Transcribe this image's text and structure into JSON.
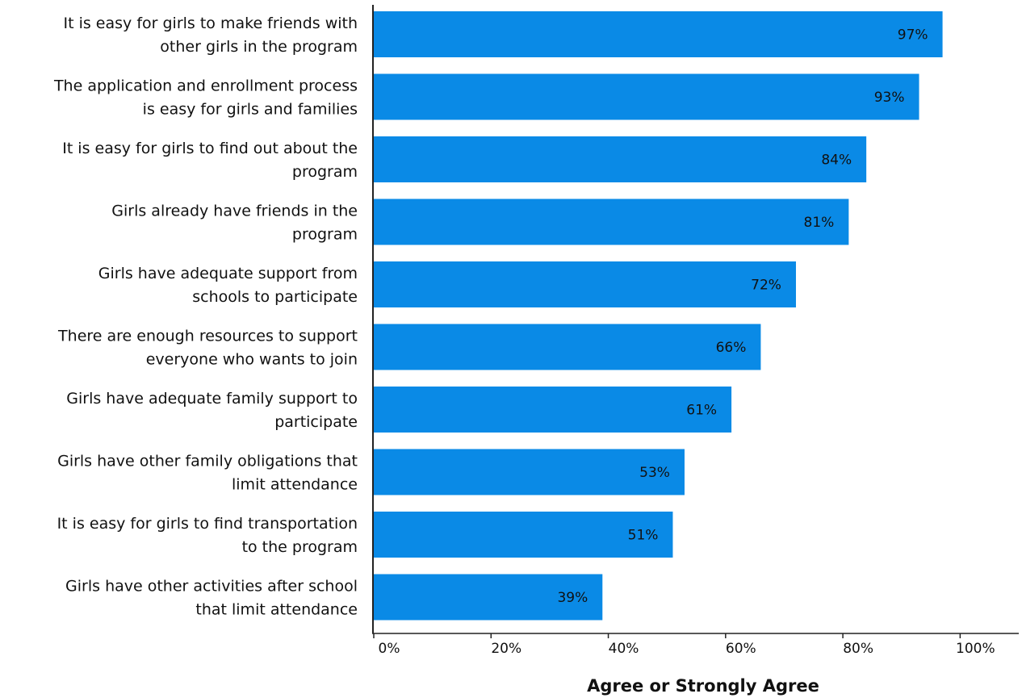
{
  "chart_data": {
    "type": "bar",
    "orientation": "horizontal",
    "categories": [
      [
        "It is easy for girls to make friends with",
        "other girls in the program"
      ],
      [
        "The application and enrollment process",
        "is easy for girls and families"
      ],
      [
        "It is easy for girls to find out about the",
        "program"
      ],
      [
        "Girls already have friends in the",
        "program"
      ],
      [
        "Girls have adequate support from",
        "schools to participate"
      ],
      [
        "There are enough resources to support",
        "everyone who wants to join"
      ],
      [
        "Girls have adequate family support to",
        "participate"
      ],
      [
        "Girls have other family obligations that",
        "limit attendance"
      ],
      [
        "It is easy for girls to find transportation",
        "to the program"
      ],
      [
        "Girls have other activities after school",
        "that limit attendance"
      ]
    ],
    "values": [
      97,
      93,
      84,
      81,
      72,
      66,
      61,
      53,
      51,
      39
    ],
    "value_labels": [
      "97%",
      "93%",
      "84%",
      "81%",
      "72%",
      "66%",
      "61%",
      "53%",
      "51%",
      "39%"
    ],
    "xlabel": "Agree or Strongly Agree",
    "ylabel": "",
    "title": "",
    "xlim": [
      0,
      110
    ],
    "xticks": [
      0,
      20,
      40,
      60,
      80,
      100
    ],
    "xtick_labels": [
      "0%",
      "20%",
      "40%",
      "60%",
      "80%",
      "100%"
    ],
    "grid": false,
    "legend": "none",
    "bar_color": "#0a8ae6"
  }
}
